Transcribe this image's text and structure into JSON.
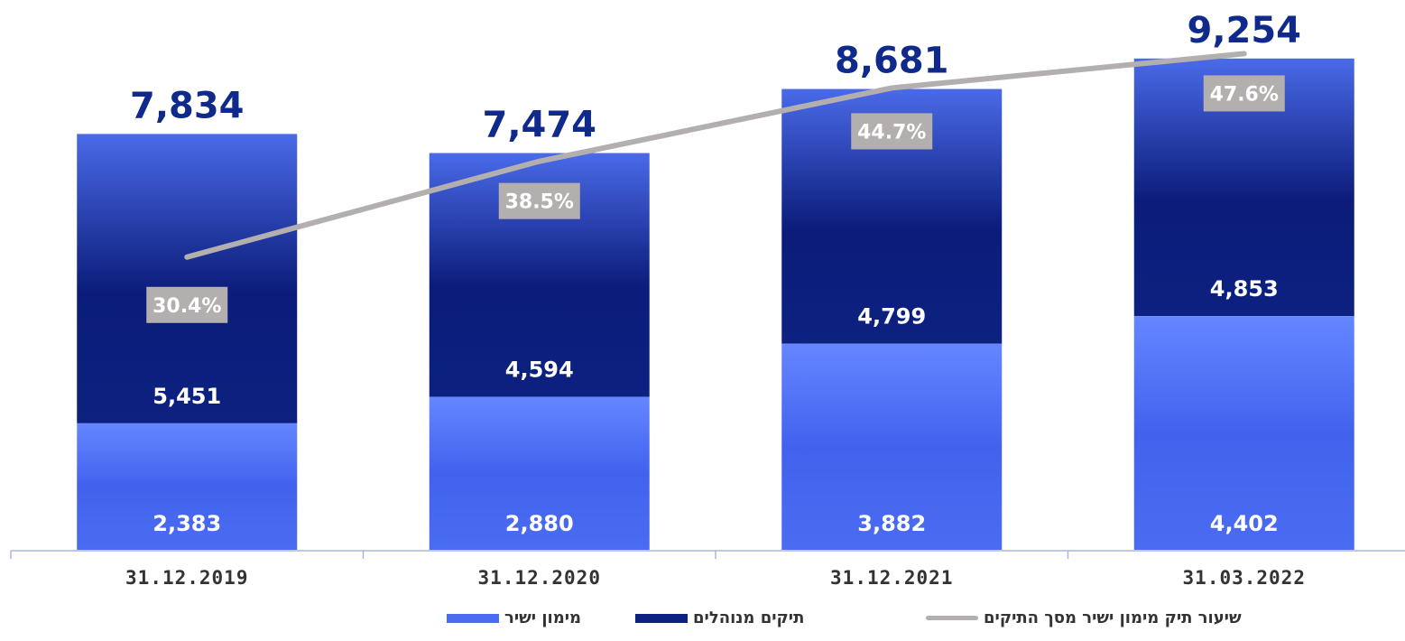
{
  "chart_data": {
    "type": "bar",
    "stacked": true,
    "categories": [
      "31.12.2019",
      "31.12.2020",
      "31.12.2021",
      "31.03.2022"
    ],
    "series": [
      {
        "name": "מימון ישיר",
        "values": [
          2383,
          2880,
          3882,
          4402
        ],
        "color": "#4a6cf0"
      },
      {
        "name": "תיקים מנוהלים",
        "values": [
          5451,
          4594,
          4799,
          4853
        ],
        "color": "#0d2180"
      }
    ],
    "line_series": {
      "name": "שיעור תיק מימון ישיר מסך התיקים",
      "values": [
        30.4,
        38.5,
        44.7,
        47.6
      ],
      "labels": [
        "30.4%",
        "38.5%",
        "44.7%",
        "47.6%"
      ],
      "color": "#b3afae"
    },
    "totals": [
      7834,
      7474,
      8681,
      9254
    ],
    "total_labels": [
      "7,834",
      "7,474",
      "8,681",
      "9,254"
    ],
    "segment_labels": {
      "direct": [
        "2,383",
        "2,880",
        "3,882",
        "4,402"
      ],
      "managed": [
        "5,451",
        "4,594",
        "4,799",
        "4,853"
      ]
    },
    "legend_position": "bottom",
    "grid": false
  },
  "legend": {
    "items": [
      {
        "label": "שיעור תיק מימון ישיר מסך התיקים",
        "type": "line"
      },
      {
        "label": "תיקים מנוהלים",
        "type": "bar-dark"
      },
      {
        "label": "מימון ישיר",
        "type": "bar-light"
      }
    ]
  }
}
